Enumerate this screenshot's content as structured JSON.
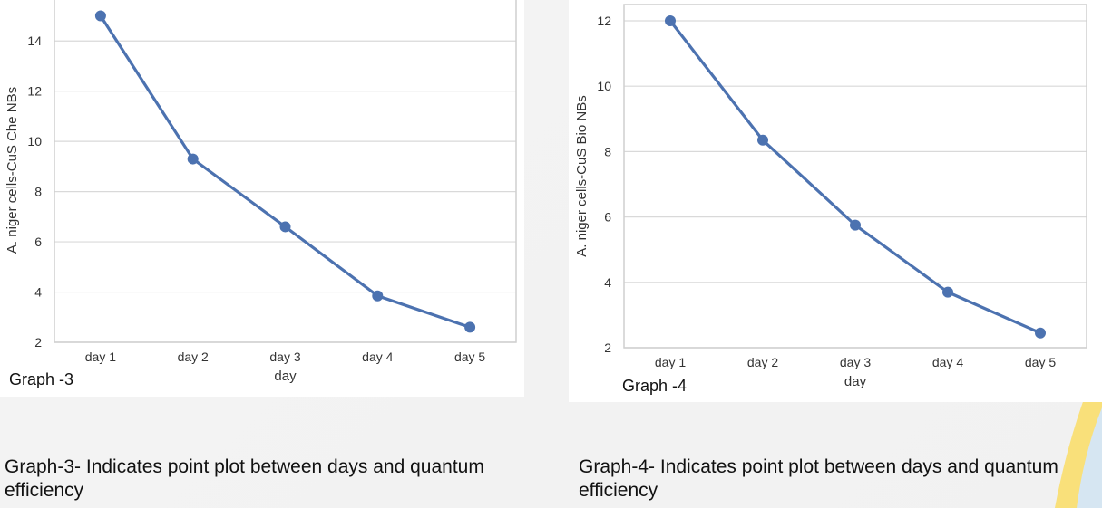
{
  "colors": {
    "line": "#4c72b0",
    "grid": "#d9d9d9",
    "frame": "#cfcfcf",
    "tick_text": "#333333",
    "accent_yellow": "#f9e07a",
    "accent_blue": "#d6e6f2"
  },
  "graph_labels": [
    "Graph -3",
    "Graph -4"
  ],
  "captions": [
    "Graph-3- Indicates point plot between days and quantum efficiency",
    "Graph-4- Indicates point plot between days and quantum efficiency"
  ],
  "chart_data": [
    {
      "type": "line",
      "title": "",
      "categories": [
        "day 1",
        "day 2",
        "day 3",
        "day 4",
        "day 5"
      ],
      "series": [
        {
          "values": [
            15.0,
            9.3,
            6.6,
            3.85,
            2.6
          ]
        }
      ],
      "xlabel": "day",
      "ylabel": "A. niger cells-CuS Che NBs",
      "ylim": [
        2,
        15
      ],
      "yticks": [
        2,
        4,
        6,
        8,
        10,
        12,
        14
      ],
      "grid": "horizontal"
    },
    {
      "type": "line",
      "title": "",
      "categories": [
        "day 1",
        "day 2",
        "day 3",
        "day 4",
        "day 5"
      ],
      "series": [
        {
          "values": [
            12.0,
            8.35,
            5.75,
            3.7,
            2.45
          ]
        }
      ],
      "xlabel": "day",
      "ylabel": "A. niger cells-CuS Bio NBs",
      "ylim": [
        2,
        12
      ],
      "yticks": [
        2,
        4,
        6,
        8,
        10,
        12
      ],
      "grid": "horizontal"
    }
  ]
}
